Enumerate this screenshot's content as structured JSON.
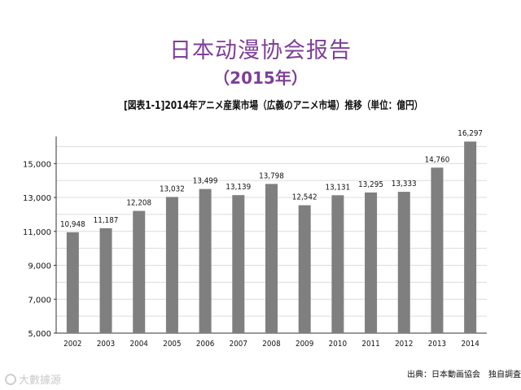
{
  "slide": {
    "title": "日本动漫协会报告",
    "subtitle": "（2015年）"
  },
  "chart_data": {
    "type": "bar",
    "title": "[図表1-1]2014年アニメ産業市場（広義のアニメ市場）推移（単位：億円）",
    "xlabel": "",
    "ylabel": "",
    "categories": [
      "2002",
      "2003",
      "2004",
      "2005",
      "2006",
      "2007",
      "2008",
      "2009",
      "2010",
      "2011",
      "2012",
      "2013",
      "2014"
    ],
    "values": [
      10948,
      11187,
      12208,
      13032,
      13499,
      13139,
      13798,
      12542,
      13131,
      13295,
      13333,
      14760,
      16297
    ],
    "data_labels": [
      "10,948",
      "11,187",
      "12,208",
      "13,032",
      "13,499",
      "13,139",
      "13,798",
      "12,542",
      "13,131",
      "13,295",
      "13,333",
      "14,760",
      "16,297"
    ],
    "ylim": [
      5000,
      16500
    ],
    "yticks": [
      5000,
      7000,
      9000,
      11000,
      13000,
      15000
    ],
    "ytick_labels": [
      "5,000",
      "7,000",
      "9,000",
      "11,000",
      "13,000",
      "15,000"
    ],
    "grid": true,
    "legend": "none",
    "bar_color": "#7f7f7f",
    "grid_color": "#dcdcdc"
  },
  "footer": {
    "source": "出典：日本動画協会　独自調査",
    "watermark": "大數據源"
  }
}
